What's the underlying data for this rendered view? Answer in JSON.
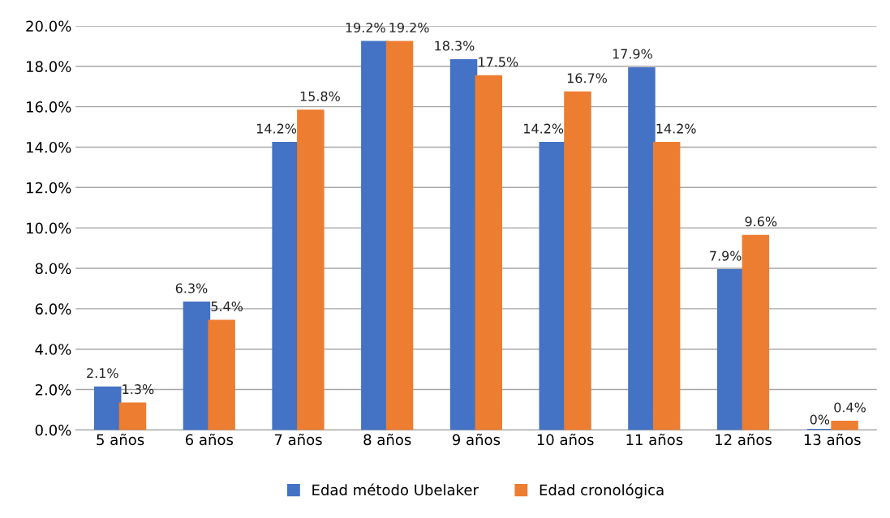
{
  "chart_data": {
    "type": "bar",
    "categories": [
      "5 años",
      "6 años",
      "7 años",
      "8 años",
      "9 años",
      "10 años",
      "11 años",
      "12 años",
      "13 años"
    ],
    "series": [
      {
        "name": "Edad método Ubelaker",
        "color": "#4472c4",
        "values": [
          2.1,
          6.3,
          14.2,
          19.2,
          18.3,
          14.2,
          17.9,
          7.9,
          0
        ],
        "value_labels": [
          "2.1%",
          "6.3%",
          "14.2%",
          "19.2%",
          "18.3%",
          "14.2%",
          "17.9%",
          "7.9%",
          "0%"
        ]
      },
      {
        "name": "Edad cronológica",
        "color": "#ed7d31",
        "values": [
          1.3,
          5.4,
          15.8,
          19.2,
          17.5,
          16.7,
          14.2,
          9.6,
          0.4
        ],
        "value_labels": [
          "1.3%",
          "5.4%",
          "15.8%",
          "19.2%",
          "17.5%",
          "16.7%",
          "14.2%",
          "9.6%",
          "0.4%"
        ]
      }
    ],
    "ylim": [
      0,
      20
    ],
    "yticks": [
      {
        "value": 0,
        "label": "0.0%"
      },
      {
        "value": 2,
        "label": "2.0%"
      },
      {
        "value": 4,
        "label": "4.0%"
      },
      {
        "value": 6,
        "label": "6.0%"
      },
      {
        "value": 8,
        "label": "8.0%"
      },
      {
        "value": 10,
        "label": "10.0%"
      },
      {
        "value": 12,
        "label": "12.0%"
      },
      {
        "value": 14,
        "label": "14.0%"
      },
      {
        "value": 16,
        "label": "16.0%"
      },
      {
        "value": 18,
        "label": "18.0%"
      },
      {
        "value": 20,
        "label": "20.0%"
      }
    ],
    "grid": "y",
    "legend": "bottom"
  }
}
